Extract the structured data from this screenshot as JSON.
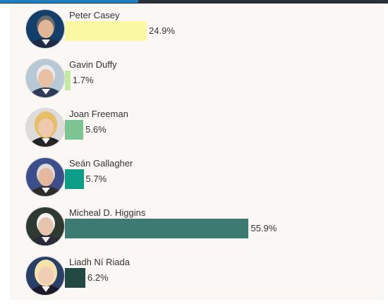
{
  "chart_data": {
    "type": "bar",
    "orientation": "horizontal",
    "categories": [
      "Peter Casey",
      "Gavin Duffy",
      "Joan Freeman",
      "Seán Gallagher",
      "Micheal D. Higgins",
      "Liadh Ní Riada"
    ],
    "values": [
      24.9,
      1.7,
      5.6,
      5.7,
      55.9,
      6.2
    ],
    "value_labels": [
      "24.9%",
      "1.7%",
      "5.6%",
      "5.7%",
      "55.9%",
      "6.2%"
    ],
    "colors": [
      "#fcf9a3",
      "#c3eaa5",
      "#7cc593",
      "#0d9e87",
      "#3d7a72",
      "#234a42"
    ],
    "avatars": [
      "portrait-peter-casey",
      "portrait-gavin-duffy",
      "portrait-joan-freeman",
      "portrait-sean-gallagher",
      "portrait-micheal-d-higgins",
      "portrait-liadh-ni-riada"
    ],
    "xlim": [
      0,
      100
    ],
    "grid": false,
    "legend": "none"
  }
}
